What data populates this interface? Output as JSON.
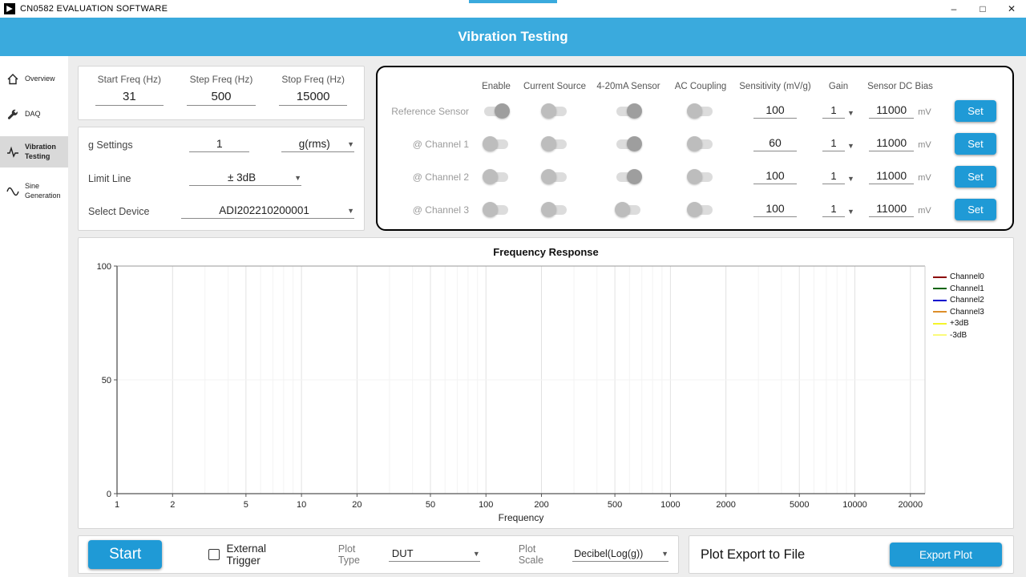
{
  "colors": {
    "accent": "#2fa9df",
    "header_bg": "#3aaadd",
    "button_blue": "#1f9ad6"
  },
  "titlebar": {
    "app_title": "CN0582 EVALUATION SOFTWARE",
    "minimize": "–",
    "maximize": "□",
    "close": "✕"
  },
  "header": {
    "title": "Vibration Testing"
  },
  "sidebar": {
    "items": [
      {
        "label": "Overview"
      },
      {
        "label": "DAQ"
      },
      {
        "label": "Vibration Testing"
      },
      {
        "label": "Sine Generation"
      }
    ]
  },
  "freq_panel": {
    "fields": [
      {
        "label": "Start Freq (Hz)",
        "value": "31"
      },
      {
        "label": "Step Freq (Hz)",
        "value": "500"
      },
      {
        "label": "Stop Freq (Hz)",
        "value": "15000"
      }
    ]
  },
  "settings_panel": {
    "g_settings_label": "g Settings",
    "g_value": "1",
    "g_unit": "g(rms)",
    "limit_line_label": "Limit Line",
    "limit_line_value": "± 3dB",
    "select_device_label": "Select Device",
    "device_value": "ADI202210200001"
  },
  "channel_panel": {
    "columns": [
      "Enable",
      "Current Source",
      "4-20mA Sensor",
      "AC Coupling",
      "Sensitivity (mV/g)",
      "Gain",
      "Sensor DC Bias"
    ],
    "set_label": "Set",
    "bias_unit": "mV",
    "rows": [
      {
        "label": "Reference Sensor",
        "toggles": {
          "enable": true,
          "current_source": false,
          "sensor_420": true,
          "ac_coupling": false
        },
        "sensitivity": "100",
        "gain": "1",
        "dc_bias": "11000"
      },
      {
        "label": "@ Channel 1",
        "toggles": {
          "enable": false,
          "current_source": false,
          "sensor_420": true,
          "ac_coupling": false
        },
        "sensitivity": "60",
        "gain": "1",
        "dc_bias": "11000"
      },
      {
        "label": "@ Channel 2",
        "toggles": {
          "enable": false,
          "current_source": false,
          "sensor_420": true,
          "ac_coupling": false
        },
        "sensitivity": "100",
        "gain": "1",
        "dc_bias": "11000"
      },
      {
        "label": "@ Channel 3",
        "toggles": {
          "enable": false,
          "current_source": false,
          "sensor_420": false,
          "ac_coupling": false
        },
        "sensitivity": "100",
        "gain": "1",
        "dc_bias": "11000"
      }
    ]
  },
  "chart_data": {
    "type": "line",
    "title": "Frequency Response",
    "xlabel": "Frequency",
    "ylabel": "",
    "x_scale": "log",
    "grid": true,
    "legend_position": "right",
    "x_ticks": [
      1,
      2,
      5,
      10,
      20,
      50,
      100,
      200,
      500,
      1000,
      2000,
      5000,
      10000,
      20000
    ],
    "y_ticks": [
      0,
      50,
      100
    ],
    "ylim": [
      0,
      100
    ],
    "xlim": [
      1,
      24000
    ],
    "series": [
      {
        "name": "Channel0",
        "color": "#8b0000",
        "x": [],
        "y": []
      },
      {
        "name": "Channel1",
        "color": "#006400",
        "x": [],
        "y": []
      },
      {
        "name": "Channel2",
        "color": "#0000cd",
        "x": [],
        "y": []
      },
      {
        "name": "Channel3",
        "color": "#dd8e2a",
        "x": [],
        "y": []
      },
      {
        "name": "+3dB",
        "color": "#f4f42a",
        "x": [],
        "y": []
      },
      {
        "name": "-3dB",
        "color": "#fafa7a",
        "x": [],
        "y": []
      }
    ]
  },
  "footer": {
    "start_label": "Start",
    "external_trigger_label": "External Trigger",
    "plot_type_label": "Plot Type",
    "plot_type_value": "DUT",
    "plot_scale_label": "Plot Scale",
    "plot_scale_value": "Decibel(Log(g))",
    "export_title": "Plot Export to File",
    "export_button_label": "Export Plot"
  }
}
